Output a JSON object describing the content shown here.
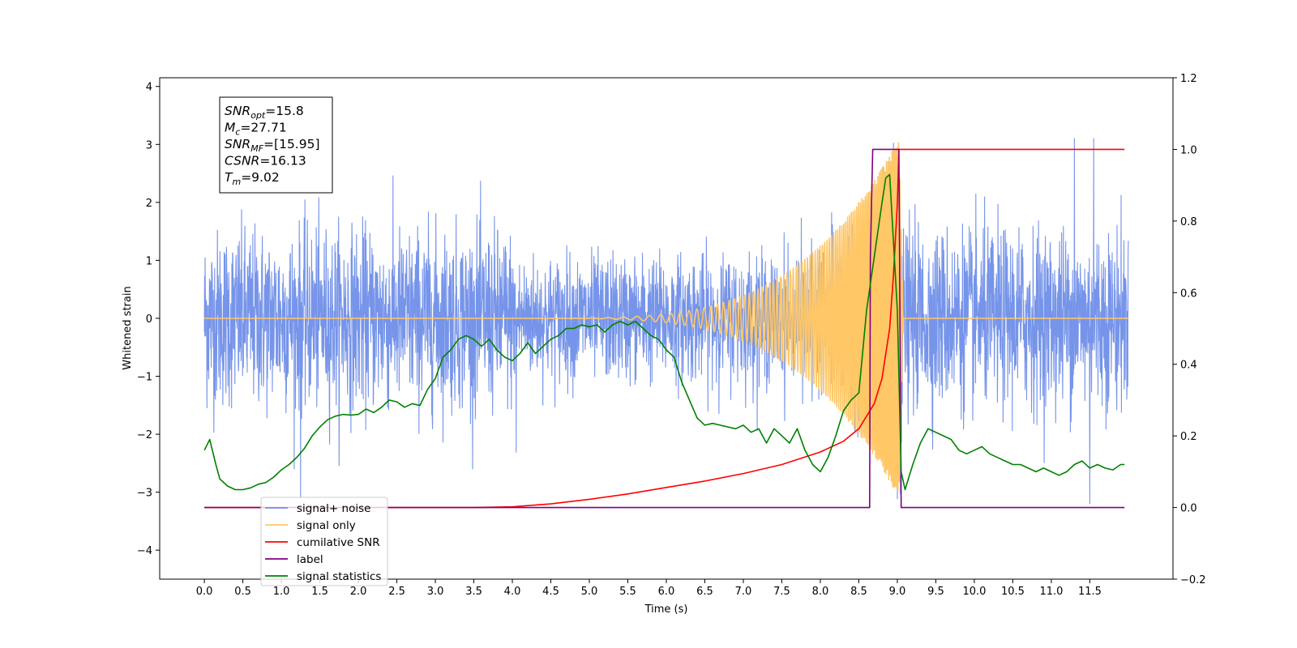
{
  "chart_data": {
    "type": "line",
    "xlabel": "Time (s)",
    "ylabel": "Whitened strain",
    "y2label": "",
    "xlim": [
      -0.58,
      12.58
    ],
    "ylim": [
      -4.5,
      4.15
    ],
    "y2lim": [
      -0.2,
      1.2
    ],
    "xticks": [
      "0.0",
      "0.5",
      "1.0",
      "1.5",
      "2.0",
      "2.5",
      "3.0",
      "3.5",
      "4.0",
      "4.5",
      "5.0",
      "5.5",
      "6.0",
      "6.5",
      "7.0",
      "7.5",
      "8.0",
      "8.5",
      "9.0",
      "9.5",
      "10.0",
      "10.5",
      "11.0",
      "11.5"
    ],
    "yticks": [
      "4",
      "3",
      "2",
      "1",
      "0",
      "−1",
      "−2",
      "−3",
      "−4"
    ],
    "y2ticks": [
      "1.2",
      "1.0",
      "0.8",
      "0.6",
      "0.4",
      "0.2",
      "0.0",
      "−0.2"
    ],
    "grid": false,
    "info_box": {
      "lines": [
        {
          "sym": "SNR",
          "sub": "opt",
          "val": "=15.8"
        },
        {
          "sym": "M",
          "sub": "c",
          "val": "=27.71"
        },
        {
          "sym": "SNR",
          "sub": "MF",
          "val": "=[15.95]"
        },
        {
          "sym": "CSNR",
          "sub": "",
          "val": "=16.13"
        },
        {
          "sym": "T",
          "sub": "m",
          "val": "=9.02"
        }
      ]
    },
    "legend": {
      "placement": "lower-left",
      "entries": [
        {
          "label": "signal+ noise",
          "color": "#6f8ee8"
        },
        {
          "label": "signal only",
          "color": "#ffc766"
        },
        {
          "label": "cumilative SNR",
          "color": "#ff0000"
        },
        {
          "label": "label",
          "color": "#800080"
        },
        {
          "label": "signal statistics",
          "color": "#008000"
        }
      ]
    },
    "series": [
      {
        "name": "signal+ noise",
        "axis": "left",
        "color": "#6f8ee8",
        "noise_std": 0.75,
        "t_start": 0.0,
        "t_end": 12.0,
        "spikes": [
          [
            1.25,
            -3.1
          ],
          [
            4.05,
            -3.3
          ],
          [
            8.95,
            3.75
          ],
          [
            9.0,
            -4.1
          ],
          [
            11.3,
            3.1
          ],
          [
            11.5,
            -3.2
          ],
          [
            11.55,
            3.1
          ]
        ]
      },
      {
        "name": "signal only",
        "axis": "left",
        "color": "#ffc766",
        "chirp": {
          "t_start": 4.0,
          "t_merger": 9.02,
          "peak_amplitude": 3.1,
          "f_start": 4.0,
          "f_end": 60.0
        }
      },
      {
        "name": "cumilative SNR",
        "axis": "right",
        "color": "#ff0000",
        "x": [
          0.0,
          3.5,
          4.0,
          4.5,
          5.0,
          5.5,
          6.0,
          6.5,
          7.0,
          7.5,
          8.0,
          8.3,
          8.5,
          8.7,
          8.8,
          8.9,
          8.95,
          9.0,
          9.02,
          9.05,
          11.95
        ],
        "y": [
          0.0,
          0.0,
          0.002,
          0.01,
          0.023,
          0.038,
          0.056,
          0.074,
          0.095,
          0.12,
          0.155,
          0.185,
          0.22,
          0.29,
          0.36,
          0.5,
          0.65,
          0.85,
          1.0,
          1.0,
          1.0
        ]
      },
      {
        "name": "label",
        "axis": "right",
        "color": "#800080",
        "x": [
          0.0,
          8.64,
          8.65,
          8.68,
          9.02,
          9.05,
          9.06,
          11.95
        ],
        "y": [
          0.0,
          0.0,
          0.7,
          1.0,
          1.0,
          0.0,
          0.0,
          0.0
        ]
      },
      {
        "name": "signal statistics",
        "axis": "right",
        "color": "#008000",
        "x": [
          0.0,
          0.07,
          0.15,
          0.2,
          0.3,
          0.4,
          0.5,
          0.6,
          0.7,
          0.8,
          0.9,
          1.0,
          1.1,
          1.2,
          1.3,
          1.4,
          1.5,
          1.6,
          1.7,
          1.8,
          1.9,
          2.0,
          2.1,
          2.2,
          2.3,
          2.4,
          2.5,
          2.6,
          2.7,
          2.8,
          2.9,
          3.0,
          3.1,
          3.2,
          3.3,
          3.4,
          3.5,
          3.6,
          3.7,
          3.8,
          3.9,
          4.0,
          4.1,
          4.2,
          4.3,
          4.4,
          4.5,
          4.6,
          4.7,
          4.8,
          4.9,
          5.0,
          5.1,
          5.2,
          5.3,
          5.4,
          5.5,
          5.6,
          5.7,
          5.8,
          5.9,
          6.0,
          6.1,
          6.2,
          6.3,
          6.4,
          6.5,
          6.6,
          6.7,
          6.8,
          6.9,
          7.0,
          7.1,
          7.2,
          7.3,
          7.4,
          7.5,
          7.6,
          7.7,
          7.8,
          7.9,
          8.0,
          8.1,
          8.2,
          8.3,
          8.4,
          8.5,
          8.6,
          8.7,
          8.8,
          8.85,
          8.9,
          9.0,
          9.05,
          9.1,
          9.2,
          9.3,
          9.4,
          9.5,
          9.6,
          9.7,
          9.8,
          9.9,
          10.0,
          10.1,
          10.2,
          10.3,
          10.4,
          10.5,
          10.6,
          10.7,
          10.8,
          10.9,
          11.0,
          11.1,
          11.2,
          11.3,
          11.4,
          11.5,
          11.6,
          11.7,
          11.8,
          11.9,
          11.95
        ],
        "y": [
          0.16,
          0.19,
          0.12,
          0.08,
          0.06,
          0.05,
          0.05,
          0.055,
          0.065,
          0.07,
          0.085,
          0.105,
          0.12,
          0.14,
          0.165,
          0.2,
          0.225,
          0.245,
          0.255,
          0.26,
          0.258,
          0.26,
          0.275,
          0.265,
          0.28,
          0.3,
          0.295,
          0.28,
          0.29,
          0.285,
          0.33,
          0.36,
          0.42,
          0.44,
          0.47,
          0.48,
          0.47,
          0.45,
          0.47,
          0.44,
          0.42,
          0.41,
          0.43,
          0.46,
          0.43,
          0.45,
          0.47,
          0.48,
          0.5,
          0.5,
          0.51,
          0.505,
          0.51,
          0.49,
          0.51,
          0.52,
          0.51,
          0.52,
          0.5,
          0.48,
          0.47,
          0.44,
          0.42,
          0.35,
          0.3,
          0.25,
          0.23,
          0.235,
          0.23,
          0.225,
          0.22,
          0.23,
          0.21,
          0.22,
          0.18,
          0.22,
          0.2,
          0.18,
          0.22,
          0.16,
          0.12,
          0.1,
          0.14,
          0.2,
          0.27,
          0.3,
          0.32,
          0.55,
          0.7,
          0.85,
          0.92,
          0.93,
          0.55,
          0.1,
          0.05,
          0.12,
          0.18,
          0.22,
          0.21,
          0.2,
          0.19,
          0.16,
          0.15,
          0.16,
          0.17,
          0.15,
          0.14,
          0.13,
          0.12,
          0.12,
          0.11,
          0.1,
          0.11,
          0.1,
          0.09,
          0.1,
          0.12,
          0.13,
          0.11,
          0.12,
          0.11,
          0.105,
          0.12,
          0.12
        ]
      }
    ]
  }
}
